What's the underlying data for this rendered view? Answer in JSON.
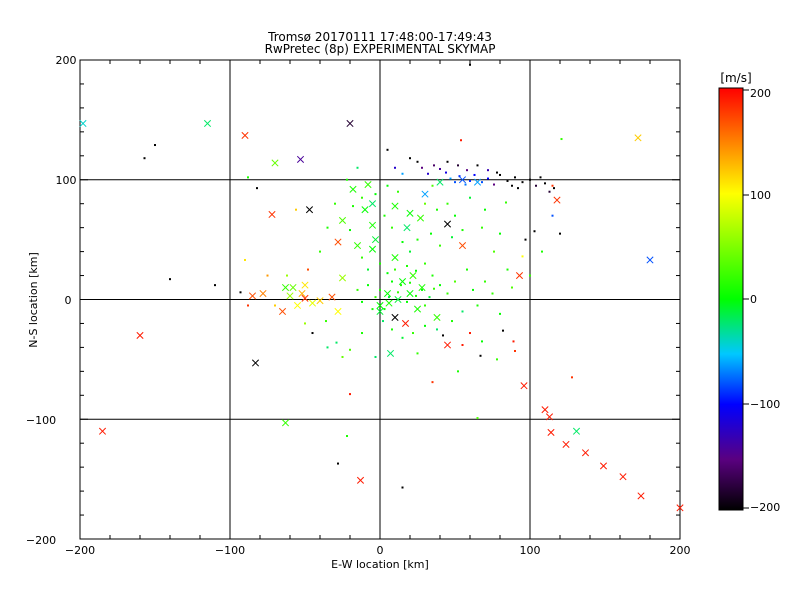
{
  "chart_data": {
    "type": "scatter",
    "title": "Tromsø 20170111 17:48:00-17:49:43",
    "subtitle": "RwPretec (8p) EXPERIMENTAL SKYMAP",
    "xlabel": "E-W location [km]",
    "ylabel": "N-S location [km]",
    "xlim": [
      -200,
      200
    ],
    "ylim": [
      -200,
      200
    ],
    "xticks": [
      "−200",
      "−100",
      "0",
      "100",
      "200"
    ],
    "yticks": [
      "−200",
      "−100",
      "0",
      "100",
      "200"
    ],
    "grid_lines": {
      "x": [
        -100,
        0,
        100
      ],
      "y": [
        -100,
        0,
        100
      ]
    },
    "colorbar": {
      "unit": "[m/s]",
      "range": [
        -200,
        200
      ],
      "ticks": [
        "200",
        "100",
        "0",
        "−100",
        "−200"
      ],
      "colormap": "black-purple-blue-cyan-green-yellow-red"
    },
    "markers": {
      "cross": "large × detections",
      "dot": "small point detections"
    },
    "crosses": [
      {
        "x": -198,
        "y": 147,
        "v": -40
      },
      {
        "x": -115,
        "y": 147,
        "v": -20
      },
      {
        "x": -90,
        "y": 137,
        "v": 180
      },
      {
        "x": -70,
        "y": 114,
        "v": 40
      },
      {
        "x": -53,
        "y": 117,
        "v": -140
      },
      {
        "x": -20,
        "y": 147,
        "v": -180
      },
      {
        "x": 172,
        "y": 135,
        "v": 120
      },
      {
        "x": -72,
        "y": 71,
        "v": 180
      },
      {
        "x": -47,
        "y": 75,
        "v": -200
      },
      {
        "x": 118,
        "y": 83,
        "v": 180
      },
      {
        "x": 180,
        "y": 33,
        "v": -80
      },
      {
        "x": 45,
        "y": 63,
        "v": -200
      },
      {
        "x": 55,
        "y": 45,
        "v": 170
      },
      {
        "x": 93,
        "y": 20,
        "v": 180
      },
      {
        "x": -160,
        "y": -30,
        "v": 190
      },
      {
        "x": -185,
        "y": -110,
        "v": 190
      },
      {
        "x": -83,
        "y": -53,
        "v": -200
      },
      {
        "x": -63,
        "y": -103,
        "v": 20
      },
      {
        "x": -13,
        "y": -151,
        "v": 190
      },
      {
        "x": 96,
        "y": -72,
        "v": 190
      },
      {
        "x": 110,
        "y": -92,
        "v": 190
      },
      {
        "x": 113,
        "y": -98,
        "v": 190
      },
      {
        "x": 114,
        "y": -111,
        "v": 190
      },
      {
        "x": 124,
        "y": -121,
        "v": 190
      },
      {
        "x": 131,
        "y": -110,
        "v": -20
      },
      {
        "x": 137,
        "y": -128,
        "v": 190
      },
      {
        "x": 149,
        "y": -139,
        "v": 190
      },
      {
        "x": 162,
        "y": -148,
        "v": 190
      },
      {
        "x": 174,
        "y": -164,
        "v": 190
      },
      {
        "x": 200,
        "y": -174,
        "v": 190
      },
      {
        "x": -8,
        "y": 96,
        "v": 20
      },
      {
        "x": -18,
        "y": 92,
        "v": 10
      },
      {
        "x": -5,
        "y": 80,
        "v": -20
      },
      {
        "x": -10,
        "y": 75,
        "v": 0
      },
      {
        "x": -5,
        "y": 62,
        "v": 10
      },
      {
        "x": -25,
        "y": 66,
        "v": 30
      },
      {
        "x": -28,
        "y": 48,
        "v": 170
      },
      {
        "x": -15,
        "y": 45,
        "v": 20
      },
      {
        "x": -5,
        "y": 42,
        "v": 0
      },
      {
        "x": -3,
        "y": 50,
        "v": -10
      },
      {
        "x": 10,
        "y": 78,
        "v": 10
      },
      {
        "x": 20,
        "y": 72,
        "v": 0
      },
      {
        "x": 27,
        "y": 68,
        "v": 20
      },
      {
        "x": 18,
        "y": 60,
        "v": -20
      },
      {
        "x": 30,
        "y": 88,
        "v": -60
      },
      {
        "x": 40,
        "y": 98,
        "v": -20
      },
      {
        "x": 10,
        "y": 35,
        "v": 10
      },
      {
        "x": 15,
        "y": 15,
        "v": 0
      },
      {
        "x": 22,
        "y": 20,
        "v": 20
      },
      {
        "x": 28,
        "y": 10,
        "v": 10
      },
      {
        "x": 5,
        "y": 5,
        "v": 0
      },
      {
        "x": 0,
        "y": -10,
        "v": -10
      },
      {
        "x": 10,
        "y": -15,
        "v": -200
      },
      {
        "x": 17,
        "y": -20,
        "v": 190
      },
      {
        "x": 7,
        "y": -45,
        "v": -20
      },
      {
        "x": 45,
        "y": -38,
        "v": 190
      },
      {
        "x": 38,
        "y": -15,
        "v": 20
      },
      {
        "x": 25,
        "y": -8,
        "v": 10
      },
      {
        "x": -25,
        "y": 18,
        "v": 60
      },
      {
        "x": -32,
        "y": 2,
        "v": 170
      },
      {
        "x": -28,
        "y": -10,
        "v": 100
      },
      {
        "x": -50,
        "y": 12,
        "v": 110
      },
      {
        "x": -52,
        "y": 5,
        "v": 130
      },
      {
        "x": -58,
        "y": 10,
        "v": 40
      },
      {
        "x": -63,
        "y": 10,
        "v": 20
      },
      {
        "x": -60,
        "y": 3,
        "v": 60
      },
      {
        "x": -55,
        "y": -5,
        "v": 100
      },
      {
        "x": -45,
        "y": -3,
        "v": 90
      },
      {
        "x": -65,
        "y": -10,
        "v": 170
      },
      {
        "x": -78,
        "y": 5,
        "v": 150
      },
      {
        "x": -85,
        "y": 3,
        "v": 170
      },
      {
        "x": -50,
        "y": 1,
        "v": 180
      },
      {
        "x": -40,
        "y": -1,
        "v": 120
      },
      {
        "x": 0,
        "y": -5,
        "v": 0
      },
      {
        "x": 6,
        "y": -3,
        "v": 10
      },
      {
        "x": 12,
        "y": 0,
        "v": -10
      },
      {
        "x": 20,
        "y": 5,
        "v": 0
      },
      {
        "x": 65,
        "y": 98,
        "v": -60
      },
      {
        "x": 55,
        "y": 100,
        "v": -80
      }
    ],
    "dots": [
      {
        "x": -157,
        "y": 118,
        "v": -200
      },
      {
        "x": -150,
        "y": 129,
        "v": -200
      },
      {
        "x": -82,
        "y": 93,
        "v": -200
      },
      {
        "x": 54,
        "y": 133,
        "v": 190
      },
      {
        "x": 60,
        "y": 196,
        "v": -200
      },
      {
        "x": 121,
        "y": 134,
        "v": 20
      },
      {
        "x": -88,
        "y": 102,
        "v": 10
      },
      {
        "x": -56,
        "y": 75,
        "v": 120
      },
      {
        "x": -90,
        "y": 33,
        "v": 110
      },
      {
        "x": -140,
        "y": 17,
        "v": -200
      },
      {
        "x": -110,
        "y": 12,
        "v": -200
      },
      {
        "x": -93,
        "y": 6,
        "v": -200
      },
      {
        "x": -88,
        "y": -5,
        "v": 180
      },
      {
        "x": -45,
        "y": -28,
        "v": -200
      },
      {
        "x": -36,
        "y": -18,
        "v": 20
      },
      {
        "x": -29,
        "y": -36,
        "v": -20
      },
      {
        "x": -20,
        "y": -42,
        "v": 30
      },
      {
        "x": -25,
        "y": -48,
        "v": 40
      },
      {
        "x": -20,
        "y": -79,
        "v": 190
      },
      {
        "x": -22,
        "y": -114,
        "v": 10
      },
      {
        "x": -28,
        "y": -137,
        "v": -200
      },
      {
        "x": 15,
        "y": -157,
        "v": -200
      },
      {
        "x": 35,
        "y": -69,
        "v": 180
      },
      {
        "x": 65,
        "y": -99,
        "v": 30
      },
      {
        "x": 67,
        "y": -47,
        "v": -200
      },
      {
        "x": 82,
        "y": -26,
        "v": -200
      },
      {
        "x": 89,
        "y": -35,
        "v": 190
      },
      {
        "x": 90,
        "y": -43,
        "v": 180
      },
      {
        "x": 103,
        "y": 57,
        "v": -200
      },
      {
        "x": 97,
        "y": 50,
        "v": -200
      },
      {
        "x": 128,
        "y": -65,
        "v": 180
      },
      {
        "x": 42,
        "y": -30,
        "v": -200
      },
      {
        "x": 60,
        "y": -28,
        "v": 190
      },
      {
        "x": 70,
        "y": 75,
        "v": 0
      },
      {
        "x": 84,
        "y": 81,
        "v": 20
      },
      {
        "x": 76,
        "y": 40,
        "v": 30
      },
      {
        "x": 95,
        "y": 36,
        "v": 100
      },
      {
        "x": 110,
        "y": 97,
        "v": -200
      },
      {
        "x": 116,
        "y": 93,
        "v": -200
      },
      {
        "x": 113,
        "y": 90,
        "v": -180
      },
      {
        "x": 100,
        "y": 100,
        "v": -200
      },
      {
        "x": 95,
        "y": 98,
        "v": -200
      },
      {
        "x": 90,
        "y": 102,
        "v": -200
      },
      {
        "x": 85,
        "y": 99,
        "v": -200
      },
      {
        "x": 80,
        "y": 104,
        "v": -200
      },
      {
        "x": 76,
        "y": 96,
        "v": -150
      },
      {
        "x": 72,
        "y": 101,
        "v": -100
      },
      {
        "x": 68,
        "y": 98,
        "v": -80
      },
      {
        "x": 63,
        "y": 104,
        "v": -100
      },
      {
        "x": 60,
        "y": 99,
        "v": -90
      },
      {
        "x": 57,
        "y": 96,
        "v": -70
      },
      {
        "x": 53,
        "y": 103,
        "v": -90
      },
      {
        "x": 50,
        "y": 98,
        "v": -80
      },
      {
        "x": 47,
        "y": 101,
        "v": -60
      },
      {
        "x": 44,
        "y": 106,
        "v": -110
      },
      {
        "x": 40,
        "y": 109,
        "v": -140
      },
      {
        "x": 36,
        "y": 112,
        "v": -160
      },
      {
        "x": 32,
        "y": 105,
        "v": -120
      },
      {
        "x": 28,
        "y": 110,
        "v": -150
      },
      {
        "x": 25,
        "y": 115,
        "v": -200
      },
      {
        "x": 20,
        "y": 118,
        "v": -200
      },
      {
        "x": 45,
        "y": 115,
        "v": -200
      },
      {
        "x": 52,
        "y": 112,
        "v": -180
      },
      {
        "x": 58,
        "y": 108,
        "v": -150
      },
      {
        "x": 65,
        "y": 112,
        "v": -200
      },
      {
        "x": 72,
        "y": 108,
        "v": -130
      },
      {
        "x": 78,
        "y": 106,
        "v": -200
      },
      {
        "x": 88,
        "y": 95,
        "v": -200
      },
      {
        "x": 92,
        "y": 93,
        "v": -200
      },
      {
        "x": 104,
        "y": 95,
        "v": -180
      },
      {
        "x": 107,
        "y": 102,
        "v": -200
      },
      {
        "x": 5,
        "y": 125,
        "v": -200
      },
      {
        "x": 10,
        "y": 110,
        "v": -120
      },
      {
        "x": 15,
        "y": 105,
        "v": -60
      },
      {
        "x": 35,
        "y": 95,
        "v": 30
      },
      {
        "x": 30,
        "y": 80,
        "v": 40
      },
      {
        "x": 38,
        "y": 75,
        "v": 10
      },
      {
        "x": 45,
        "y": 80,
        "v": 20
      },
      {
        "x": 50,
        "y": 70,
        "v": 0
      },
      {
        "x": 55,
        "y": 58,
        "v": 10
      },
      {
        "x": 48,
        "y": 52,
        "v": -10
      },
      {
        "x": 40,
        "y": 45,
        "v": 20
      },
      {
        "x": 34,
        "y": 55,
        "v": 0
      },
      {
        "x": 25,
        "y": 50,
        "v": 10
      },
      {
        "x": 20,
        "y": 40,
        "v": -10
      },
      {
        "x": 15,
        "y": 48,
        "v": 0
      },
      {
        "x": 8,
        "y": 60,
        "v": 20
      },
      {
        "x": 3,
        "y": 70,
        "v": 10
      },
      {
        "x": -3,
        "y": 88,
        "v": 0
      },
      {
        "x": -12,
        "y": 85,
        "v": 20
      },
      {
        "x": -18,
        "y": 78,
        "v": 10
      },
      {
        "x": -20,
        "y": 58,
        "v": 0
      },
      {
        "x": -12,
        "y": 35,
        "v": 20
      },
      {
        "x": -8,
        "y": 25,
        "v": -10
      },
      {
        "x": 0,
        "y": 30,
        "v": 10
      },
      {
        "x": 5,
        "y": 22,
        "v": 0
      },
      {
        "x": 10,
        "y": 25,
        "v": 20
      },
      {
        "x": 18,
        "y": 28,
        "v": 10
      },
      {
        "x": 24,
        "y": 24,
        "v": 0
      },
      {
        "x": 30,
        "y": 30,
        "v": 20
      },
      {
        "x": 35,
        "y": 20,
        "v": 10
      },
      {
        "x": 40,
        "y": 12,
        "v": 0
      },
      {
        "x": 45,
        "y": 5,
        "v": 20
      },
      {
        "x": 50,
        "y": 15,
        "v": 30
      },
      {
        "x": 58,
        "y": 25,
        "v": 10
      },
      {
        "x": 62,
        "y": 8,
        "v": 0
      },
      {
        "x": 70,
        "y": 15,
        "v": 20
      },
      {
        "x": 65,
        "y": -5,
        "v": 10
      },
      {
        "x": 55,
        "y": -10,
        "v": -20
      },
      {
        "x": 48,
        "y": -18,
        "v": 10
      },
      {
        "x": 38,
        "y": -25,
        "v": -20
      },
      {
        "x": 30,
        "y": -22,
        "v": 0
      },
      {
        "x": 22,
        "y": -28,
        "v": 20
      },
      {
        "x": 15,
        "y": -32,
        "v": -10
      },
      {
        "x": 8,
        "y": -25,
        "v": 10
      },
      {
        "x": 2,
        "y": -18,
        "v": -20
      },
      {
        "x": -5,
        "y": -8,
        "v": 10
      },
      {
        "x": -12,
        "y": -2,
        "v": 0
      },
      {
        "x": -15,
        "y": 8,
        "v": 20
      },
      {
        "x": -8,
        "y": 12,
        "v": 0
      },
      {
        "x": 0,
        "y": 8,
        "v": 10
      },
      {
        "x": 6,
        "y": 2,
        "v": -10
      },
      {
        "x": 12,
        "y": 6,
        "v": 20
      },
      {
        "x": 18,
        "y": -2,
        "v": 0
      },
      {
        "x": 24,
        "y": 3,
        "v": 10
      },
      {
        "x": 30,
        "y": -5,
        "v": 20
      },
      {
        "x": 28,
        "y": 8,
        "v": 0
      },
      {
        "x": 14,
        "y": 12,
        "v": 10
      },
      {
        "x": 8,
        "y": 15,
        "v": 0
      },
      {
        "x": -3,
        "y": 2,
        "v": 20
      },
      {
        "x": 3,
        "y": -8,
        "v": 0
      },
      {
        "x": 20,
        "y": 14,
        "v": 10
      },
      {
        "x": 33,
        "y": 2,
        "v": -10
      },
      {
        "x": 36,
        "y": 9,
        "v": 20
      },
      {
        "x": -35,
        "y": -40,
        "v": -20
      },
      {
        "x": -50,
        "y": -20,
        "v": 60
      },
      {
        "x": -70,
        "y": -5,
        "v": 120
      },
      {
        "x": -75,
        "y": 20,
        "v": 140
      },
      {
        "x": -48,
        "y": 25,
        "v": 170
      },
      {
        "x": -40,
        "y": 40,
        "v": 20
      },
      {
        "x": -35,
        "y": 60,
        "v": 10
      },
      {
        "x": -30,
        "y": 80,
        "v": 20
      },
      {
        "x": -22,
        "y": 100,
        "v": 10
      },
      {
        "x": -15,
        "y": 110,
        "v": -20
      },
      {
        "x": 5,
        "y": 95,
        "v": 0
      },
      {
        "x": 12,
        "y": 90,
        "v": 20
      },
      {
        "x": 60,
        "y": 85,
        "v": -10
      },
      {
        "x": 68,
        "y": 60,
        "v": 20
      },
      {
        "x": 80,
        "y": 55,
        "v": 0
      },
      {
        "x": 85,
        "y": 25,
        "v": 10
      },
      {
        "x": 75,
        "y": 5,
        "v": 20
      },
      {
        "x": 80,
        "y": -12,
        "v": 0
      },
      {
        "x": -62,
        "y": 20,
        "v": 60
      },
      {
        "x": -3,
        "y": -48,
        "v": -20
      },
      {
        "x": -12,
        "y": -28,
        "v": 10
      },
      {
        "x": 25,
        "y": -45,
        "v": 20
      },
      {
        "x": 52,
        "y": -60,
        "v": 10
      },
      {
        "x": 55,
        "y": -38,
        "v": 190
      },
      {
        "x": 68,
        "y": -35,
        "v": 0
      },
      {
        "x": 78,
        "y": -50,
        "v": 20
      },
      {
        "x": 88,
        "y": 10,
        "v": 30
      },
      {
        "x": 100,
        "y": 20,
        "v": 20
      },
      {
        "x": 108,
        "y": 40,
        "v": 10
      },
      {
        "x": 120,
        "y": 55,
        "v": -200
      },
      {
        "x": 115,
        "y": 70,
        "v": -80
      },
      {
        "x": 115,
        "y": 95,
        "v": 180
      }
    ]
  }
}
